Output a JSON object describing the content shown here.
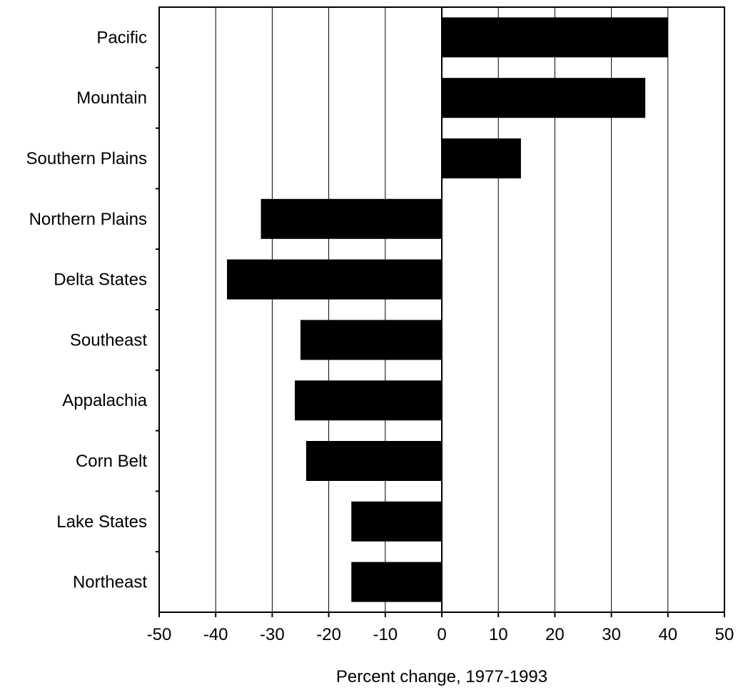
{
  "chart_data": {
    "type": "bar",
    "orientation": "horizontal",
    "categories": [
      "Pacific",
      "Mountain",
      "Southern Plains",
      "Northern Plains",
      "Delta States",
      "Southeast",
      "Appalachia",
      "Corn Belt",
      "Lake States",
      "Northeast"
    ],
    "values": [
      40,
      36,
      14,
      -32,
      -38,
      -25,
      -26,
      -24,
      -16,
      -16
    ],
    "xlabel": "Percent change, 1977-1993",
    "ylabel": "",
    "title": "",
    "xlim": [
      -50,
      50
    ],
    "xticks": [
      "-50",
      "-40",
      "-30",
      "-20",
      "-10",
      "0",
      "10",
      "20",
      "30",
      "40",
      "50"
    ],
    "grid": "vertical",
    "bar_color": "#000000",
    "legend": "none"
  }
}
